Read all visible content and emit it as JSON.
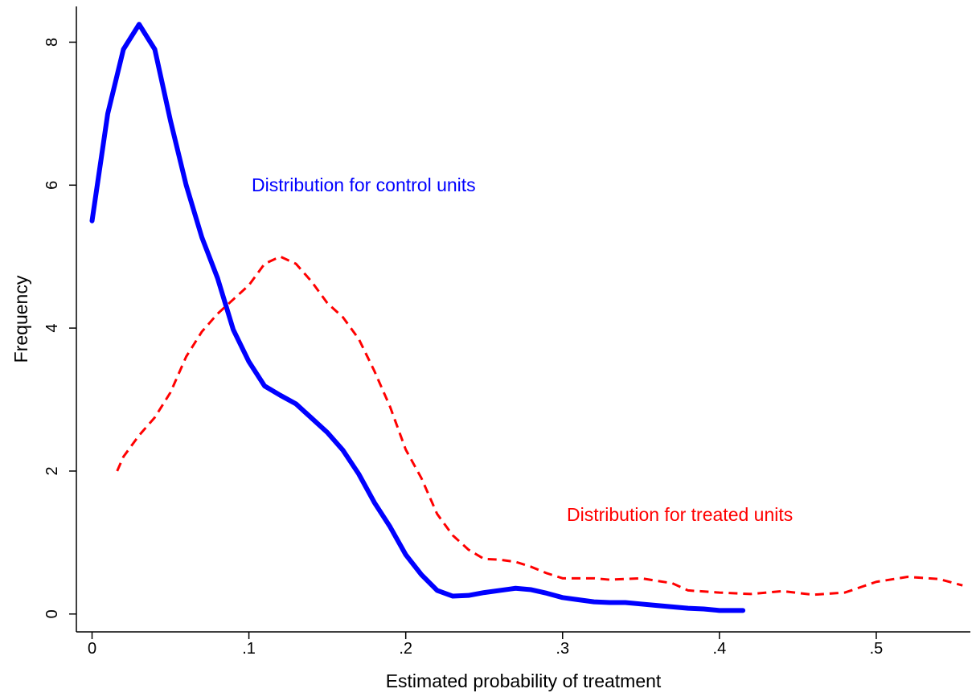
{
  "chart_data": {
    "type": "line",
    "xlabel": "Estimated probability of treatment",
    "ylabel": "Frequency",
    "xlim": [
      -0.01,
      0.56
    ],
    "ylim": [
      -0.25,
      8.5
    ],
    "xticks": [
      0,
      {
        "value": 0.1,
        "label": ".1"
      },
      {
        "value": 0.2,
        "label": ".2"
      },
      {
        "value": 0.3,
        "label": ".3"
      },
      {
        "value": 0.4,
        "label": ".4"
      },
      {
        "value": 0.5,
        "label": ".5"
      }
    ],
    "yticks": [
      0,
      2,
      4,
      6,
      8
    ],
    "grid": false,
    "series": [
      {
        "color": "#0000ff",
        "line_style": "solid",
        "x": [
          0,
          0.01,
          0.02,
          0.03,
          0.04,
          0.05,
          0.06,
          0.07,
          0.08,
          0.09,
          0.1,
          0.11,
          0.12,
          0.13,
          0.14,
          0.15,
          0.16,
          0.17,
          0.18,
          0.19,
          0.2,
          0.21,
          0.22,
          0.23,
          0.24,
          0.25,
          0.26,
          0.27,
          0.28,
          0.29,
          0.3,
          0.31,
          0.32,
          0.33,
          0.34,
          0.35,
          0.36,
          0.37,
          0.38,
          0.39,
          0.4,
          0.415
        ],
        "values": [
          5.5,
          7.0,
          7.9,
          8.25,
          7.9,
          6.9,
          6.0,
          5.27,
          4.7,
          3.98,
          3.53,
          3.19,
          3.06,
          2.94,
          2.74,
          2.54,
          2.29,
          1.96,
          1.56,
          1.22,
          0.83,
          0.55,
          0.33,
          0.25,
          0.26,
          0.3,
          0.33,
          0.36,
          0.34,
          0.29,
          0.23,
          0.2,
          0.17,
          0.16,
          0.16,
          0.14,
          0.12,
          0.1,
          0.08,
          0.07,
          0.05,
          0.05
        ]
      },
      {
        "color": "#ff0000",
        "line_style": "dashed",
        "x": [
          0.016,
          0.02,
          0.03,
          0.04,
          0.05,
          0.06,
          0.07,
          0.08,
          0.09,
          0.1,
          0.11,
          0.12,
          0.13,
          0.14,
          0.15,
          0.16,
          0.17,
          0.18,
          0.19,
          0.2,
          0.21,
          0.22,
          0.23,
          0.24,
          0.25,
          0.26,
          0.27,
          0.28,
          0.29,
          0.3,
          0.32,
          0.33,
          0.35,
          0.37,
          0.38,
          0.4,
          0.42,
          0.44,
          0.46,
          0.48,
          0.5,
          0.52,
          0.54,
          0.555
        ],
        "values": [
          2.0,
          2.2,
          2.5,
          2.75,
          3.1,
          3.6,
          3.95,
          4.2,
          4.4,
          4.6,
          4.9,
          5.0,
          4.9,
          4.65,
          4.35,
          4.15,
          3.85,
          3.4,
          2.9,
          2.3,
          1.9,
          1.4,
          1.1,
          0.9,
          0.77,
          0.76,
          0.73,
          0.66,
          0.57,
          0.5,
          0.5,
          0.48,
          0.5,
          0.43,
          0.33,
          0.3,
          0.28,
          0.32,
          0.27,
          0.3,
          0.45,
          0.52,
          0.49,
          0.4
        ]
      }
    ],
    "annotations": [
      {
        "text": "Distribution for control units",
        "color": "#0000ff"
      },
      {
        "text": "Distribution for treated units",
        "color": "#ff0000"
      }
    ]
  }
}
